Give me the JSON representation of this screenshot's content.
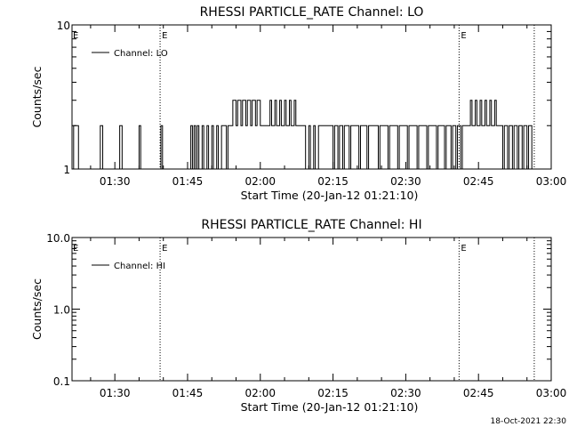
{
  "footer": {
    "date_stamp": "18-Oct-2021 22:30"
  },
  "colors": {
    "foreground": "#000000",
    "background": "#ffffff"
  },
  "chart_data": [
    {
      "type": "line",
      "title": "RHESSI PARTICLE_RATE Channel: LO",
      "xlabel": "Start Time (20-Jan-12 01:21:10)",
      "ylabel": "Counts/sec",
      "yscale": "log",
      "xlim": [
        "01:21:10",
        "03:00:00"
      ],
      "ylim": [
        1,
        10
      ],
      "x_ticks": [
        "01:30",
        "01:45",
        "02:00",
        "02:15",
        "02:30",
        "02:45",
        "03:00"
      ],
      "y_ticks": [
        "1",
        "10"
      ],
      "grid": false,
      "legend": {
        "position": "top-left",
        "entries": [
          "Channel: LO"
        ]
      },
      "event_lines": [
        {
          "time": "01:39:20",
          "label": "E"
        },
        {
          "time": "02:41:00",
          "label": "E"
        },
        {
          "time": "02:56:30",
          "label": ""
        }
      ],
      "series": [
        {
          "name": "Channel: LO",
          "x": [
            "01:21:10",
            "01:21:30",
            "01:22:00",
            "01:22:30",
            "01:23:00",
            "01:26:30",
            "01:27:00",
            "01:27:30",
            "01:30:30",
            "01:31:00",
            "01:31:30",
            "01:34:40",
            "01:35:00",
            "01:35:20",
            "01:39:10",
            "01:39:30",
            "01:39:50",
            "01:45:20",
            "01:45:40",
            "01:46:00",
            "01:46:20",
            "01:46:40",
            "01:47:00",
            "01:47:20",
            "01:48:00",
            "01:48:20",
            "01:49:00",
            "01:49:20",
            "01:50:00",
            "01:50:20",
            "01:51:00",
            "01:51:20",
            "01:52:00",
            "01:52:20",
            "01:53:00",
            "01:53:20",
            "01:54:00",
            "01:54:20",
            "01:55:00",
            "01:55:20",
            "01:56:00",
            "01:56:20",
            "01:57:00",
            "01:57:20",
            "01:58:00",
            "01:58:20",
            "01:59:00",
            "01:59:20",
            "02:00:00",
            "02:00:20",
            "02:01:00",
            "02:01:20",
            "02:02:00",
            "02:02:20",
            "02:03:00",
            "02:03:20",
            "02:04:00",
            "02:04:20",
            "02:05:00",
            "02:05:20",
            "02:06:00",
            "02:06:20",
            "02:07:00",
            "02:07:20",
            "02:08:00",
            "02:08:20",
            "02:09:00",
            "02:09:20",
            "02:10:00",
            "02:10:20",
            "02:11:00",
            "02:11:20",
            "02:12:00",
            "02:12:20",
            "02:13:00",
            "02:13:20",
            "02:15:00",
            "02:15:20",
            "02:16:00",
            "02:16:20",
            "02:17:00",
            "02:17:20",
            "02:18:20",
            "02:18:40",
            "02:20:20",
            "02:20:40",
            "02:22:00",
            "02:22:20",
            "02:24:20",
            "02:24:40",
            "02:26:20",
            "02:26:40",
            "02:28:20",
            "02:28:40",
            "02:30:20",
            "02:30:40",
            "02:32:20",
            "02:32:40",
            "02:34:20",
            "02:34:40",
            "02:36:20",
            "02:36:40",
            "02:38:00",
            "02:38:20",
            "02:39:20",
            "02:39:40",
            "02:40:20",
            "02:40:40",
            "02:41:20",
            "02:41:40",
            "02:42:20",
            "02:42:40",
            "02:43:20",
            "02:43:40",
            "02:44:20",
            "02:44:40",
            "02:45:20",
            "02:45:40",
            "02:46:20",
            "02:46:40",
            "02:47:20",
            "02:47:40",
            "02:48:20",
            "02:48:40",
            "02:49:20",
            "02:49:40",
            "02:50:00",
            "02:50:20",
            "02:51:00",
            "02:51:20",
            "02:52:00",
            "02:52:20",
            "02:53:00",
            "02:53:20",
            "02:54:00",
            "02:54:20",
            "02:55:00",
            "02:55:20",
            "02:56:00",
            "02:56:20"
          ],
          "values": [
            1,
            2,
            2,
            1,
            1,
            1,
            2,
            1,
            1,
            2,
            1,
            1,
            2,
            1,
            1,
            2,
            1,
            1,
            2,
            1,
            2,
            1,
            2,
            1,
            2,
            1,
            2,
            1,
            2,
            1,
            2,
            1,
            2,
            2,
            1,
            2,
            2,
            3,
            2,
            3,
            2,
            3,
            2,
            3,
            2,
            3,
            2,
            3,
            2,
            2,
            2,
            2,
            3,
            2,
            3,
            2,
            3,
            2,
            3,
            2,
            3,
            2,
            3,
            2,
            2,
            2,
            2,
            1,
            2,
            1,
            2,
            1,
            2,
            2,
            2,
            2,
            1,
            2,
            1,
            2,
            1,
            2,
            1,
            2,
            1,
            2,
            1,
            2,
            1,
            2,
            1,
            2,
            1,
            2,
            1,
            2,
            1,
            2,
            1,
            2,
            1,
            2,
            1,
            2,
            1,
            2,
            1,
            2,
            1,
            2,
            2,
            2,
            3,
            2,
            3,
            2,
            3,
            2,
            3,
            2,
            3,
            2,
            3,
            2,
            2,
            2,
            1,
            2,
            1,
            2,
            1,
            2,
            1,
            2,
            1,
            2,
            1,
            2,
            1,
            1
          ]
        }
      ]
    },
    {
      "type": "line",
      "title": "RHESSI PARTICLE_RATE Channel: HI",
      "xlabel": "Start Time (20-Jan-12 01:21:10)",
      "ylabel": "Counts/sec",
      "yscale": "log",
      "xlim": [
        "01:21:10",
        "03:00:00"
      ],
      "ylim": [
        0.1,
        10
      ],
      "x_ticks": [
        "01:30",
        "01:45",
        "02:00",
        "02:15",
        "02:30",
        "02:45",
        "03:00"
      ],
      "y_ticks": [
        "0.1",
        "1.0",
        "10.0"
      ],
      "grid": false,
      "legend": {
        "position": "top-left",
        "entries": [
          "Channel: HI"
        ]
      },
      "event_lines": [
        {
          "time": "01:39:20",
          "label": "E"
        },
        {
          "time": "02:41:00",
          "label": "E"
        },
        {
          "time": "02:56:30",
          "label": ""
        }
      ],
      "series": [
        {
          "name": "Channel: HI",
          "x": [],
          "values": []
        }
      ]
    }
  ]
}
